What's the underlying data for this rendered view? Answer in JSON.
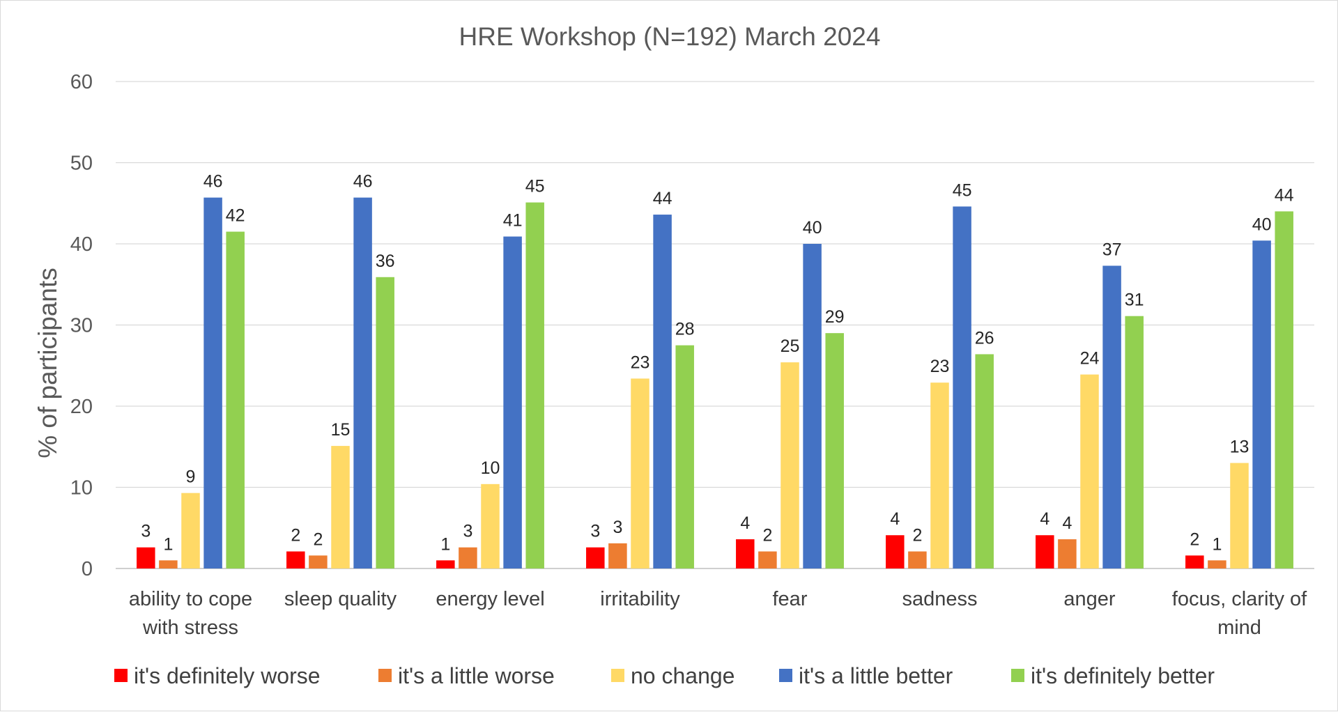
{
  "chart_data": {
    "type": "bar",
    "title": "HRE Workshop (N=192) March 2024",
    "xlabel": "",
    "ylabel": "% of participants",
    "ylim": [
      0,
      60
    ],
    "yticks": [
      0,
      10,
      20,
      30,
      40,
      50,
      60
    ],
    "grid": true,
    "legend_position": "bottom",
    "categories": [
      [
        "ability to cope",
        "with stress"
      ],
      [
        "sleep quality"
      ],
      [
        "energy level"
      ],
      [
        "irritability"
      ],
      [
        "fear"
      ],
      [
        "sadness"
      ],
      [
        "anger"
      ],
      [
        "focus, clarity of",
        "mind"
      ]
    ],
    "series": [
      {
        "name": "it's definitely worse",
        "color": "#ff0000",
        "values": [
          2.6,
          2.1,
          1.0,
          2.6,
          3.6,
          4.1,
          4.1,
          1.6
        ],
        "labels": [
          "3",
          "2",
          "1",
          "3",
          "4",
          "4",
          "4",
          "2"
        ]
      },
      {
        "name": "it's a little worse",
        "color": "#ed7d31",
        "values": [
          1.0,
          1.6,
          2.6,
          3.1,
          2.1,
          2.1,
          3.6,
          1.0
        ],
        "labels": [
          "1",
          "2",
          "3",
          "3",
          "2",
          "2",
          "4",
          "1"
        ]
      },
      {
        "name": "no change",
        "color": "#ffd966",
        "values": [
          9.3,
          15.1,
          10.4,
          23.4,
          25.4,
          22.9,
          23.9,
          13.0
        ],
        "labels": [
          "9",
          "15",
          "10",
          "23",
          "25",
          "23",
          "24",
          "13"
        ]
      },
      {
        "name": "it's a little better",
        "color": "#4472c4",
        "values": [
          45.7,
          45.7,
          40.9,
          43.6,
          40.0,
          44.6,
          37.3,
          40.4
        ],
        "labels": [
          "46",
          "46",
          "41",
          "44",
          "40",
          "45",
          "37",
          "40"
        ]
      },
      {
        "name": "it's definitely better",
        "color": "#92d050",
        "values": [
          41.5,
          35.9,
          45.1,
          27.5,
          29.0,
          26.4,
          31.1,
          44.0
        ],
        "labels": [
          "42",
          "36",
          "45",
          "28",
          "29",
          "26",
          "31",
          "44"
        ]
      }
    ]
  }
}
